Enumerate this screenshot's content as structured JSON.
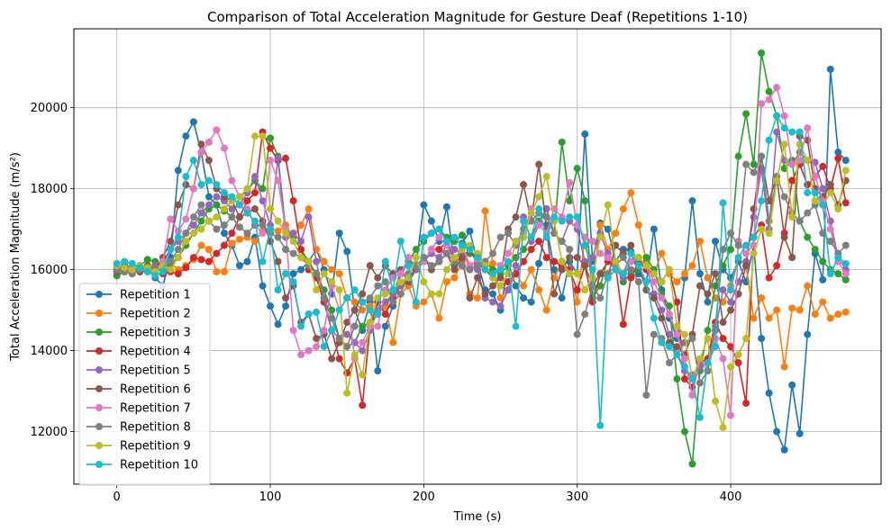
{
  "chart_data": {
    "type": "line",
    "title": "Comparison of Total Acceleration Magnitude for Gesture Deaf (Repetitions 1-10)",
    "xlabel": "Time (s)",
    "ylabel": "Total Acceleration Magnitude (m/s²)",
    "xlim": [
      -28,
      498
    ],
    "ylim": [
      10700,
      21950
    ],
    "xticks": [
      0,
      100,
      200,
      300,
      400
    ],
    "yticks": [
      12000,
      14000,
      16000,
      18000,
      20000
    ],
    "grid": true,
    "legend_position": "lower-left",
    "x": [
      0,
      5,
      10,
      15,
      20,
      25,
      30,
      35,
      40,
      45,
      50,
      55,
      60,
      65,
      70,
      75,
      80,
      85,
      90,
      95,
      100,
      105,
      110,
      115,
      120,
      125,
      130,
      135,
      140,
      145,
      150,
      155,
      160,
      165,
      170,
      175,
      180,
      185,
      190,
      195,
      200,
      205,
      210,
      215,
      220,
      225,
      230,
      235,
      240,
      245,
      250,
      255,
      260,
      265,
      270,
      275,
      280,
      285,
      290,
      295,
      300,
      305,
      310,
      315,
      320,
      325,
      330,
      335,
      340,
      345,
      350,
      355,
      360,
      365,
      370,
      375,
      380,
      385,
      390,
      395,
      400,
      405,
      410,
      415,
      420,
      425,
      430,
      435,
      440,
      445,
      450,
      455,
      460,
      465,
      470,
      475
    ],
    "series": [
      {
        "name": "Repetition 1",
        "color": "#1f77b4",
        "values": [
          16050,
          16100,
          16000,
          15950,
          16050,
          15800,
          15600,
          16300,
          18450,
          19300,
          19650,
          18900,
          17800,
          17600,
          16900,
          16600,
          16100,
          16200,
          16800,
          15600,
          15100,
          14650,
          15100,
          15900,
          16000,
          16200,
          16500,
          16000,
          15400,
          16900,
          16450,
          15000,
          14500,
          15200,
          13500,
          14600,
          15100,
          15900,
          16200,
          16100,
          17600,
          17200,
          16700,
          17550,
          16100,
          16650,
          16950,
          16200,
          15500,
          15400,
          15000,
          16150,
          15600,
          15300,
          15200,
          16150,
          17100,
          16000,
          15300,
          16200,
          15900,
          19350,
          16200,
          17150,
          17000,
          16200,
          16500,
          16450,
          15900,
          15700,
          17000,
          15500,
          14800,
          14300,
          15800,
          17700,
          15900,
          15200,
          16700,
          16000,
          15800,
          16200,
          15700,
          16600,
          14300,
          12950,
          12000,
          11550,
          13150,
          11950,
          14400,
          16400,
          15750,
          20950,
          18900,
          18700
        ]
      },
      {
        "name": "Repetition 2",
        "color": "#ff7f0e",
        "values": [
          16000,
          15950,
          15900,
          16100,
          16050,
          15950,
          16100,
          16150,
          16000,
          16100,
          16250,
          16600,
          16500,
          15950,
          15950,
          16650,
          16750,
          16800,
          16700,
          16950,
          17000,
          16950,
          17100,
          16800,
          17100,
          17500,
          16500,
          16200,
          16000,
          15900,
          15300,
          15200,
          15000,
          15100,
          14900,
          15100,
          14200,
          15400,
          15600,
          15100,
          15200,
          15400,
          14800,
          15700,
          15800,
          16200,
          15400,
          15300,
          17450,
          16150,
          15300,
          15500,
          15900,
          15600,
          16000,
          15500,
          15000,
          15800,
          16200,
          16000,
          15200,
          16800,
          15600,
          17100,
          16500,
          16900,
          17500,
          17900,
          17100,
          16200,
          15900,
          16400,
          15900,
          15700,
          15900,
          16100,
          16700,
          15800,
          15300,
          15200,
          15600,
          16300,
          16100,
          14800,
          15300,
          14800,
          15000,
          13600,
          15050,
          15000,
          15600,
          14900,
          15200,
          14800,
          14900,
          14950
        ]
      },
      {
        "name": "Repetition 3",
        "color": "#2ca02c",
        "values": [
          15850,
          15950,
          16000,
          16100,
          16250,
          16200,
          16050,
          16150,
          16300,
          16600,
          16900,
          17200,
          17500,
          17600,
          17450,
          17300,
          17800,
          17950,
          18200,
          18000,
          19250,
          18800,
          17000,
          16800,
          16500,
          16200,
          15900,
          15500,
          15000,
          14300,
          14100,
          14200,
          14600,
          14700,
          14900,
          15200,
          15300,
          16000,
          16200,
          16500,
          16700,
          16900,
          17000,
          16800,
          16700,
          16850,
          16400,
          16300,
          16200,
          16000,
          15900,
          16100,
          16300,
          16500,
          16800,
          17200,
          17500,
          16900,
          19150,
          17700,
          18500,
          17700,
          15300,
          15600,
          16300,
          16100,
          15700,
          15900,
          16000,
          16300,
          16000,
          15400,
          15100,
          13300,
          12000,
          11200,
          13500,
          14500,
          15600,
          16100,
          16500,
          18800,
          19850,
          18600,
          21350,
          20400,
          19800,
          18500,
          18700,
          17200,
          16800,
          16500,
          16200,
          16000,
          15900,
          15750
        ]
      },
      {
        "name": "Repetition 4",
        "color": "#d62728",
        "values": [
          16000,
          16100,
          16050,
          15950,
          16000,
          16100,
          15900,
          15950,
          15900,
          16050,
          16300,
          16250,
          16200,
          16400,
          16600,
          16900,
          17300,
          17700,
          17900,
          19400,
          19000,
          18700,
          18750,
          17700,
          16500,
          16000,
          15800,
          15200,
          14500,
          13800,
          13450,
          13800,
          12650,
          14600,
          15200,
          14900,
          15300,
          15600,
          15700,
          16000,
          16200,
          16500,
          16500,
          16700,
          16200,
          16300,
          16500,
          16150,
          16000,
          15800,
          15600,
          15700,
          15900,
          16200,
          16500,
          16700,
          16300,
          16200,
          16100,
          16000,
          15500,
          16100,
          15200,
          15900,
          16200,
          16100,
          14650,
          15800,
          16200,
          16000,
          15900,
          15700,
          16000,
          15200,
          13300,
          13100,
          13700,
          13800,
          14700,
          14300,
          14100,
          13700,
          12700,
          16800,
          17100,
          15800,
          16100,
          16900,
          18200,
          18600,
          18100,
          18300,
          18550,
          18000,
          18750,
          17650
        ]
      },
      {
        "name": "Repetition 5",
        "color": "#9467bd",
        "values": [
          16000,
          15950,
          16000,
          16050,
          16000,
          16100,
          16200,
          16500,
          16700,
          16900,
          17100,
          17400,
          17600,
          17800,
          17700,
          17500,
          17600,
          17900,
          18300,
          17700,
          17100,
          18750,
          16800,
          16900,
          16700,
          17300,
          16200,
          15300,
          14500,
          14300,
          14400,
          14200,
          14000,
          14500,
          15000,
          15200,
          15400,
          15600,
          15800,
          16000,
          16200,
          16400,
          16300,
          16600,
          16500,
          16400,
          16100,
          16000,
          15300,
          15200,
          15100,
          15500,
          16100,
          17300,
          16700,
          17100,
          17500,
          16900,
          16700,
          17200,
          17000,
          16200,
          16300,
          16900,
          16400,
          16000,
          15800,
          16200,
          16300,
          16100,
          15400,
          15000,
          14400,
          13900,
          13500,
          13400,
          13600,
          13700,
          14500,
          15500,
          15200,
          15700,
          16200,
          17300,
          18500,
          17000,
          19400,
          18700,
          18600,
          18900,
          18700,
          18650,
          18000,
          17200,
          16300,
          16000
        ]
      },
      {
        "name": "Repetition 6",
        "color": "#8c564b",
        "values": [
          15950,
          16000,
          16050,
          15950,
          16100,
          16000,
          16300,
          16700,
          17600,
          18100,
          18000,
          19100,
          18700,
          18000,
          17800,
          17700,
          17300,
          17400,
          17500,
          17200,
          16700,
          16200,
          15300,
          15600,
          14700,
          14900,
          14300,
          14400,
          13800,
          14200,
          14700,
          15000,
          15400,
          16100,
          15800,
          16100,
          15900,
          16000,
          15700,
          16100,
          16300,
          16000,
          16200,
          16400,
          16000,
          16300,
          15300,
          15800,
          15400,
          15600,
          15800,
          17000,
          17300,
          18100,
          17200,
          18600,
          17000,
          15400,
          16000,
          16300,
          16300,
          16100,
          15600,
          15900,
          15800,
          16600,
          16400,
          16600,
          16100,
          15500,
          15300,
          14800,
          14200,
          14100,
          13900,
          14400,
          15600,
          15400,
          15900,
          14700,
          15000,
          15400,
          16100,
          17500,
          18800,
          17700,
          18300,
          16800,
          16300,
          19300,
          19200,
          18000,
          17800,
          18100,
          17600,
          18200
        ]
      },
      {
        "name": "Repetition 7",
        "color": "#e377c2",
        "values": [
          16000,
          15950,
          16100,
          16050,
          15950,
          16000,
          16200,
          17250,
          16950,
          17250,
          18000,
          18900,
          19150,
          19450,
          19000,
          18200,
          17800,
          17500,
          17100,
          16900,
          18700,
          18200,
          17000,
          14500,
          13900,
          14000,
          14100,
          14500,
          15600,
          15000,
          15300,
          13800,
          14200,
          14600,
          14600,
          15500,
          15800,
          15900,
          16300,
          16100,
          16200,
          16500,
          16800,
          16600,
          16200,
          16600,
          16100,
          16250,
          16000,
          15900,
          16100,
          16400,
          16700,
          16900,
          17500,
          17100,
          16900,
          17500,
          17300,
          18150,
          17100,
          16800,
          16700,
          16400,
          16300,
          16100,
          15900,
          16200,
          16300,
          16100,
          15700,
          15300,
          14900,
          14400,
          13800,
          12900,
          13800,
          13500,
          14300,
          13800,
          12400,
          16700,
          16400,
          16600,
          20100,
          20200,
          20500,
          19800,
          18600,
          18700,
          19500,
          18300,
          17700,
          17000,
          16200,
          15900
        ]
      },
      {
        "name": "Repetition 8",
        "color": "#7f7f7f",
        "values": [
          16000,
          15950,
          15900,
          16000,
          15950,
          16050,
          16000,
          16200,
          16500,
          16900,
          17300,
          17600,
          17200,
          17000,
          17100,
          17300,
          17050,
          16900,
          17100,
          17100,
          16900,
          16800,
          16500,
          16400,
          16300,
          16100,
          15900,
          15300,
          14800,
          14300,
          14100,
          14600,
          15200,
          15300,
          15600,
          15700,
          15200,
          15400,
          15900,
          16100,
          16300,
          16100,
          16200,
          16400,
          16200,
          16100,
          16000,
          16100,
          16200,
          16400,
          16800,
          16900,
          16600,
          17000,
          17200,
          17400,
          17300,
          16900,
          16700,
          16500,
          14400,
          14900,
          15600,
          15300,
          15900,
          16100,
          16300,
          16000,
          15700,
          12900,
          14400,
          14300,
          13700,
          13900,
          14200,
          14300,
          13200,
          13500,
          14600,
          16500,
          16900,
          16600,
          18600,
          18400,
          18800,
          17200,
          18300,
          17800,
          17400,
          17200,
          17400,
          17600,
          16900,
          16700,
          16400,
          16600
        ]
      },
      {
        "name": "Repetition 9",
        "color": "#bcbd22",
        "values": [
          16100,
          16050,
          16000,
          16100,
          16050,
          15950,
          16100,
          16000,
          16300,
          16700,
          16900,
          17000,
          17200,
          17300,
          17500,
          17700,
          17800,
          18000,
          19300,
          19300,
          17500,
          17200,
          16900,
          16700,
          16300,
          16200,
          15500,
          15900,
          15700,
          15500,
          12950,
          13900,
          13400,
          14700,
          15300,
          15400,
          15500,
          15700,
          15800,
          16300,
          15700,
          15400,
          15400,
          16000,
          16300,
          16500,
          16600,
          16400,
          16100,
          15800,
          15600,
          15900,
          16700,
          16800,
          17400,
          17800,
          18300,
          17200,
          16200,
          15900,
          15900,
          15500,
          15800,
          16800,
          17600,
          16200,
          15900,
          16400,
          16300,
          16100,
          15900,
          15700,
          16000,
          14600,
          14400,
          13300,
          13800,
          14300,
          12750,
          12100,
          13600,
          13900,
          14300,
          16400,
          17000,
          16900,
          18200,
          19100,
          17300,
          19100,
          18700,
          17700,
          17600,
          17900,
          17500,
          18450
        ]
      },
      {
        "name": "Repetition 10",
        "color": "#17becf",
        "values": [
          16150,
          16200,
          16150,
          16050,
          15950,
          15850,
          15950,
          16500,
          16800,
          18300,
          18700,
          18100,
          18200,
          18100,
          17900,
          17800,
          17600,
          17400,
          17200,
          16200,
          17000,
          15500,
          15900,
          15700,
          14600,
          14900,
          14950,
          14100,
          14500,
          15000,
          15300,
          15500,
          15200,
          15000,
          14900,
          16200,
          15500,
          16700,
          16100,
          15200,
          16800,
          16900,
          17000,
          16700,
          16800,
          16600,
          16500,
          16300,
          16000,
          15900,
          16000,
          16200,
          14600,
          17200,
          16800,
          17500,
          16800,
          17300,
          17200,
          17300,
          17300,
          16600,
          16000,
          12150,
          15800,
          16000,
          15900,
          16400,
          16100,
          15700,
          14800,
          14200,
          14100,
          13900,
          13600,
          13300,
          12350,
          13700,
          14100,
          17650,
          15500,
          16300,
          16600,
          16800,
          17700,
          19200,
          19800,
          19500,
          19400,
          19400,
          17900,
          17900,
          17600,
          15900,
          16300,
          16150
        ]
      }
    ]
  }
}
